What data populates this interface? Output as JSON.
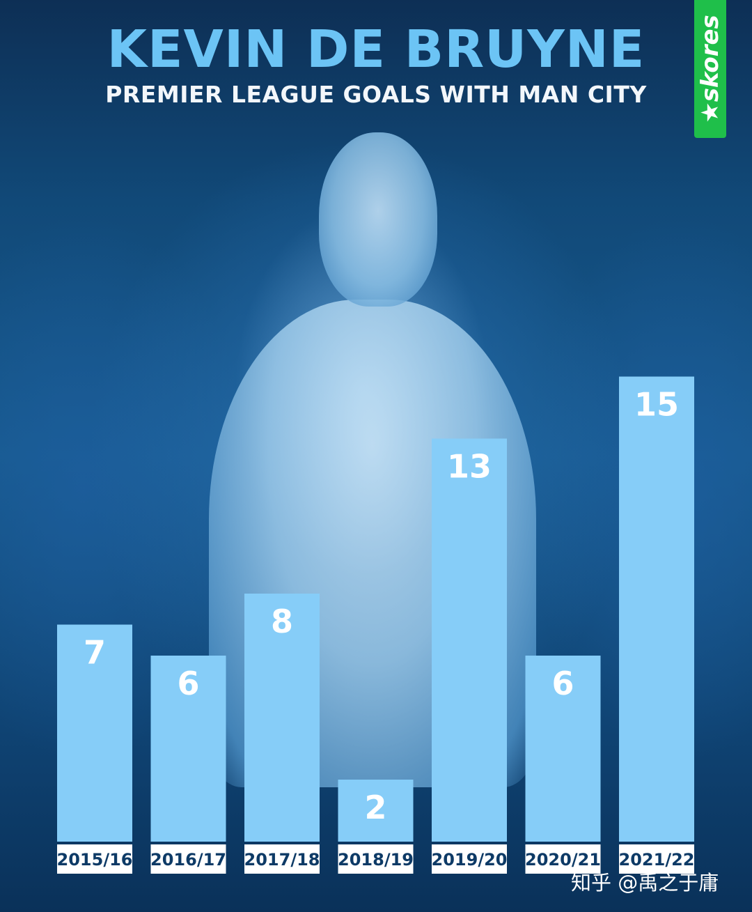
{
  "header": {
    "title": "KEVIN DE BRUYNE",
    "subtitle": "PREMIER LEAGUE GOALS WITH MAN CITY"
  },
  "brand": {
    "name": "★skores",
    "color": "#1fbf4a"
  },
  "watermark": "知乎 @禹之于庸",
  "colors": {
    "bar": "#86cdf8",
    "title": "#6cc4f5"
  },
  "chart_data": {
    "type": "bar",
    "title": "PREMIER LEAGUE GOALS WITH MAN CITY",
    "xlabel": "",
    "ylabel": "",
    "categories": [
      "2015/16",
      "2016/17",
      "2017/18",
      "2018/19",
      "2019/20",
      "2020/21",
      "2021/22"
    ],
    "values": [
      7,
      6,
      8,
      2,
      13,
      6,
      15
    ],
    "ylim": [
      0,
      16
    ],
    "grid": false,
    "legend": "none"
  }
}
